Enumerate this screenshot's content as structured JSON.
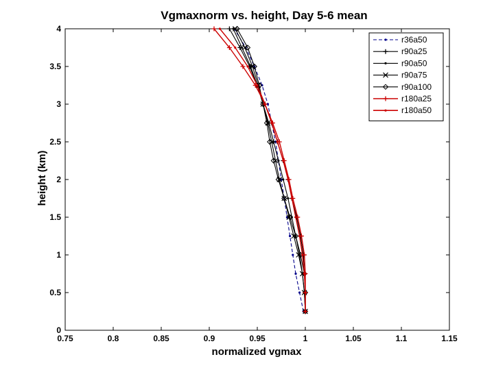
{
  "chart_data": {
    "type": "line",
    "title": "Vgmaxnorm vs. height, Day 5-6 mean",
    "xlabel": "normalized vgmax",
    "ylabel": "height (km)",
    "xlim": [
      0.75,
      1.15
    ],
    "ylim": [
      0,
      4
    ],
    "xticks": [
      "0.75",
      "0.8",
      "0.85",
      "0.9",
      "0.95",
      "1",
      "1.05",
      "1.1",
      "1.15"
    ],
    "yticks": [
      "0",
      "0.5",
      "1",
      "1.5",
      "2",
      "2.5",
      "3",
      "3.5",
      "4"
    ],
    "grid": false,
    "legend_position": "top-right",
    "y": [
      0.25,
      0.5,
      0.75,
      1.0,
      1.25,
      1.5,
      1.75,
      2.0,
      2.25,
      2.5,
      2.75,
      3.0,
      3.25,
      3.5,
      3.75,
      4.0
    ],
    "series": [
      {
        "name": "r36a50",
        "color": "#00008b",
        "dash": "5,3",
        "marker": "dot",
        "values": [
          0.998,
          0.994,
          0.99,
          0.987,
          0.984,
          0.981,
          0.978,
          0.975,
          0.972,
          0.969,
          0.965,
          0.961,
          0.955,
          0.947,
          0.938,
          0.926
        ]
      },
      {
        "name": "r90a25",
        "color": "#000000",
        "dash": "",
        "marker": "plus",
        "values": [
          1.0,
          1.0,
          0.999,
          0.998,
          0.995,
          0.991,
          0.986,
          0.982,
          0.977,
          0.971,
          0.965,
          0.958,
          0.95,
          0.942,
          0.932,
          0.921
        ]
      },
      {
        "name": "r90a50",
        "color": "#000000",
        "dash": "",
        "marker": "dot",
        "values": [
          1.0,
          0.999,
          0.997,
          0.994,
          0.99,
          0.986,
          0.982,
          0.977,
          0.972,
          0.967,
          0.962,
          0.956,
          0.95,
          0.943,
          0.934,
          0.925
        ]
      },
      {
        "name": "r90a75",
        "color": "#000000",
        "dash": "",
        "marker": "x",
        "values": [
          1.0,
          0.999,
          0.997,
          0.993,
          0.988,
          0.983,
          0.978,
          0.973,
          0.969,
          0.965,
          0.961,
          0.956,
          0.951,
          0.945,
          0.937,
          0.927
        ]
      },
      {
        "name": "r90a100",
        "color": "#000000",
        "dash": "",
        "marker": "diamond",
        "values": [
          1.0,
          1.0,
          0.999,
          0.995,
          0.99,
          0.984,
          0.978,
          0.972,
          0.967,
          0.963,
          0.96,
          0.956,
          0.952,
          0.947,
          0.94,
          0.929
        ]
      },
      {
        "name": "r180a25",
        "color": "#cc0000",
        "dash": "",
        "marker": "plus",
        "values": [
          1.0,
          1.0,
          1.0,
          0.999,
          0.996,
          0.992,
          0.987,
          0.983,
          0.978,
          0.973,
          0.966,
          0.958,
          0.948,
          0.935,
          0.921,
          0.905
        ]
      },
      {
        "name": "r180a50",
        "color": "#cc0000",
        "dash": "",
        "marker": "dot",
        "values": [
          1.0,
          1.0,
          0.999,
          0.997,
          0.994,
          0.99,
          0.986,
          0.982,
          0.977,
          0.971,
          0.965,
          0.958,
          0.95,
          0.94,
          0.927,
          0.911
        ]
      }
    ]
  }
}
